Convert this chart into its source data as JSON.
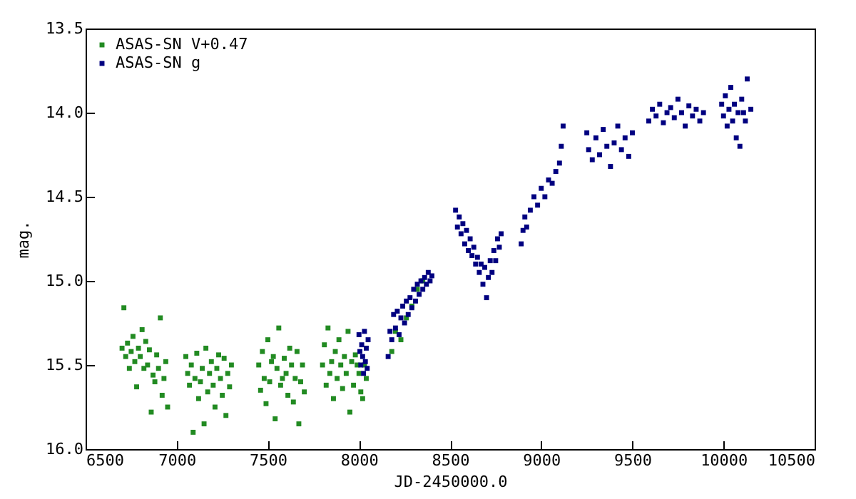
{
  "chart_data": {
    "type": "scatter",
    "xlabel": "JD-2450000.0",
    "ylabel": "mag.",
    "xlim": [
      6500,
      10500
    ],
    "ylim": [
      16.0,
      13.5
    ],
    "xticks": [
      6500,
      7000,
      7500,
      8000,
      8500,
      9000,
      9500,
      10000,
      10500
    ],
    "yticks": [
      13.5,
      {
        "value": 14,
        "label": "14.0"
      },
      14.5,
      {
        "value": 15,
        "label": "15.0"
      },
      15.5,
      {
        "value": 16,
        "label": "16.0"
      }
    ],
    "grid": false,
    "legend": "top left",
    "marker": "square",
    "series": [
      {
        "name": "ASAS-SN V+0.47",
        "color": "#228b22",
        "x": [
          6700,
          6710,
          6720,
          6730,
          6740,
          6750,
          6760,
          6770,
          6780,
          6790,
          6800,
          6810,
          6820,
          6830,
          6840,
          6850,
          6860,
          6870,
          6880,
          6890,
          6900,
          6910,
          6920,
          6930,
          6940,
          6950,
          7050,
          7060,
          7070,
          7080,
          7090,
          7100,
          7110,
          7120,
          7130,
          7140,
          7150,
          7160,
          7170,
          7180,
          7190,
          7200,
          7210,
          7220,
          7230,
          7240,
          7250,
          7260,
          7270,
          7280,
          7290,
          7300,
          7450,
          7460,
          7470,
          7480,
          7490,
          7500,
          7510,
          7520,
          7530,
          7540,
          7550,
          7560,
          7570,
          7580,
          7590,
          7600,
          7610,
          7620,
          7630,
          7640,
          7650,
          7660,
          7670,
          7680,
          7690,
          7700,
          7800,
          7810,
          7820,
          7830,
          7840,
          7850,
          7860,
          7870,
          7880,
          7890,
          7900,
          7910,
          7920,
          7930,
          7940,
          7950,
          7960,
          7970,
          7980,
          7990,
          8000,
          8010,
          8020,
          8030,
          8040,
          8180,
          8200,
          8230,
          8260,
          8290,
          8320,
          8350
        ],
        "values": [
          15.4,
          15.16,
          15.45,
          15.37,
          15.52,
          15.42,
          15.33,
          15.48,
          15.63,
          15.4,
          15.45,
          15.29,
          15.52,
          15.36,
          15.5,
          15.41,
          15.78,
          15.56,
          15.6,
          15.44,
          15.52,
          15.22,
          15.68,
          15.58,
          15.48,
          15.75,
          15.45,
          15.55,
          15.62,
          15.5,
          15.9,
          15.58,
          15.43,
          15.7,
          15.6,
          15.52,
          15.85,
          15.4,
          15.66,
          15.55,
          15.48,
          15.62,
          15.75,
          15.52,
          15.44,
          15.58,
          15.68,
          15.46,
          15.8,
          15.55,
          15.63,
          15.5,
          15.5,
          15.65,
          15.42,
          15.58,
          15.73,
          15.35,
          15.6,
          15.48,
          15.45,
          15.82,
          15.52,
          15.28,
          15.62,
          15.58,
          15.46,
          15.55,
          15.68,
          15.4,
          15.5,
          15.72,
          15.58,
          15.42,
          15.85,
          15.6,
          15.5,
          15.66,
          15.5,
          15.38,
          15.62,
          15.28,
          15.55,
          15.48,
          15.7,
          15.42,
          15.58,
          15.35,
          15.5,
          15.64,
          15.45,
          15.55,
          15.3,
          15.78,
          15.48,
          15.62,
          15.44,
          15.5,
          15.55,
          15.66,
          15.7,
          15.5,
          15.58,
          15.42,
          15.3,
          15.35,
          15.22,
          15.15,
          15.05,
          15.0
        ]
      },
      {
        "name": "ASAS-SN g",
        "color": "#000080",
        "x": [
          8000,
          8005,
          8010,
          8015,
          8020,
          8025,
          8030,
          8035,
          8040,
          8045,
          8050,
          8160,
          8170,
          8180,
          8190,
          8200,
          8210,
          8220,
          8230,
          8240,
          8250,
          8260,
          8270,
          8280,
          8290,
          8300,
          8310,
          8320,
          8330,
          8340,
          8350,
          8360,
          8370,
          8380,
          8390,
          8400,
          8530,
          8540,
          8550,
          8560,
          8570,
          8580,
          8590,
          8600,
          8610,
          8620,
          8630,
          8640,
          8650,
          8660,
          8670,
          8680,
          8690,
          8700,
          8710,
          8720,
          8730,
          8740,
          8750,
          8760,
          8770,
          8780,
          8890,
          8900,
          8910,
          8920,
          8940,
          8960,
          8980,
          9000,
          9020,
          9040,
          9060,
          9080,
          9100,
          9110,
          9120,
          9250,
          9260,
          9280,
          9300,
          9320,
          9340,
          9360,
          9380,
          9400,
          9420,
          9440,
          9460,
          9480,
          9500,
          9590,
          9610,
          9630,
          9650,
          9670,
          9690,
          9710,
          9730,
          9750,
          9770,
          9790,
          9810,
          9830,
          9850,
          9870,
          9890,
          9990,
          10000,
          10010,
          10020,
          10030,
          10040,
          10050,
          10060,
          10070,
          10080,
          10090,
          10100,
          10110,
          10120,
          10130,
          10150
        ],
        "values": [
          15.32,
          15.42,
          15.5,
          15.38,
          15.45,
          15.55,
          15.3,
          15.48,
          15.4,
          15.52,
          15.35,
          15.45,
          15.3,
          15.35,
          15.2,
          15.28,
          15.18,
          15.32,
          15.22,
          15.15,
          15.25,
          15.12,
          15.2,
          15.1,
          15.16,
          15.05,
          15.12,
          15.02,
          15.08,
          15.0,
          15.05,
          14.98,
          15.02,
          14.95,
          15.0,
          14.97,
          14.58,
          14.68,
          14.62,
          14.72,
          14.66,
          14.78,
          14.7,
          14.82,
          14.75,
          14.85,
          14.8,
          14.9,
          14.86,
          14.95,
          14.9,
          15.02,
          14.92,
          15.1,
          14.98,
          14.88,
          14.95,
          14.82,
          14.88,
          14.75,
          14.8,
          14.72,
          14.78,
          14.7,
          14.62,
          14.68,
          14.58,
          14.5,
          14.55,
          14.45,
          14.5,
          14.4,
          14.42,
          14.35,
          14.3,
          14.2,
          14.08,
          14.12,
          14.22,
          14.28,
          14.15,
          14.25,
          14.1,
          14.2,
          14.32,
          14.18,
          14.08,
          14.22,
          14.15,
          14.26,
          14.12,
          14.05,
          13.98,
          14.02,
          13.95,
          14.06,
          14.0,
          13.97,
          14.03,
          13.92,
          14.0,
          14.08,
          13.96,
          14.02,
          13.98,
          14.05,
          14.0,
          13.95,
          14.02,
          13.9,
          14.08,
          13.98,
          13.85,
          14.05,
          13.95,
          14.15,
          14.0,
          14.2,
          13.92,
          14.0,
          14.05,
          13.8,
          13.98
        ]
      }
    ]
  }
}
